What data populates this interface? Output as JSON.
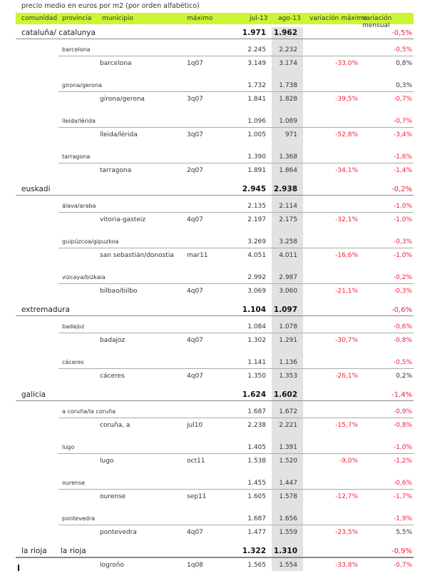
{
  "title": "precio medio en euros por m2 (por orden alfabético)",
  "headers": {
    "comunidad": "comunidad",
    "provincia": "provincia",
    "municipio": "municipio",
    "maximo": "máximo",
    "jul": "jul-13",
    "ago": "ago-13",
    "var_max": "variación máximo",
    "var_mensual": "variación mensual"
  },
  "rows": [
    {
      "type": "comm",
      "name": "cataluña/ catalunya",
      "jul": "1.971",
      "ago": "1.962",
      "var_max": "",
      "var_mensual": "-0,5%"
    },
    {
      "type": "prov",
      "name": "barcelona",
      "jul": "2.245",
      "ago": "2.232",
      "var_max": "",
      "var_mensual": "-0,5%"
    },
    {
      "type": "muni",
      "name": "barcelona",
      "maximo": "1q07",
      "jul": "3.149",
      "ago": "3.174",
      "var_max": "-33,0%",
      "var_mensual": "0,8%"
    },
    {
      "type": "prov",
      "name": "girona/gerona",
      "jul": "1.732",
      "ago": "1.738",
      "var_max": "",
      "var_mensual": "0,3%"
    },
    {
      "type": "muni",
      "name": "girona/gerona",
      "maximo": "3q07",
      "jul": "1.841",
      "ago": "1.828",
      "var_max": "-39,5%",
      "var_mensual": "-0,7%"
    },
    {
      "type": "prov",
      "name": "lleida/lérida",
      "jul": "1.096",
      "ago": "1.089",
      "var_max": "",
      "var_mensual": "-0,7%"
    },
    {
      "type": "muni",
      "name": "lleida/lérida",
      "maximo": "3q07",
      "jul": "1.005",
      "ago": "971",
      "var_max": "-52,8%",
      "var_mensual": "-3,4%"
    },
    {
      "type": "prov",
      "name": "tarragona",
      "jul": "1.390",
      "ago": "1.368",
      "var_max": "",
      "var_mensual": "-1,6%"
    },
    {
      "type": "muni",
      "name": "tarragona",
      "maximo": "2q07",
      "jul": "1.891",
      "ago": "1.864",
      "var_max": "-34,1%",
      "var_mensual": "-1,4%"
    },
    {
      "type": "comm",
      "name": "euskadi",
      "jul": "2.945",
      "ago": "2.938",
      "var_max": "",
      "var_mensual": "-0,2%"
    },
    {
      "type": "prov",
      "name": "álava/araba",
      "jul": "2.135",
      "ago": "2.114",
      "var_max": "",
      "var_mensual": "-1,0%"
    },
    {
      "type": "muni",
      "name": "vitoria-gasteiz",
      "maximo": "4q07",
      "jul": "2.197",
      "ago": "2.175",
      "var_max": "-32,1%",
      "var_mensual": "-1,0%"
    },
    {
      "type": "prov",
      "name": "guipúzcoa/gipuzkoa",
      "jul": "3.269",
      "ago": "3.258",
      "var_max": "",
      "var_mensual": "-0,3%"
    },
    {
      "type": "muni",
      "name": "san sebastián/donostia",
      "maximo": "mar11",
      "jul": "4.051",
      "ago": "4.011",
      "var_max": "-16,6%",
      "var_mensual": "-1,0%"
    },
    {
      "type": "prov",
      "name": "vizcaya/bizkaia",
      "jul": "2.992",
      "ago": "2.987",
      "var_max": "",
      "var_mensual": "-0,2%"
    },
    {
      "type": "muni",
      "name": "bilbao/bilbo",
      "maximo": "4q07",
      "jul": "3.069",
      "ago": "3.060",
      "var_max": "-21,1%",
      "var_mensual": "-0,3%"
    },
    {
      "type": "comm",
      "name": "extremadura",
      "jul": "1.104",
      "ago": "1.097",
      "var_max": "",
      "var_mensual": "-0,6%"
    },
    {
      "type": "prov",
      "name": "badajoz",
      "jul": "1.084",
      "ago": "1.078",
      "var_max": "",
      "var_mensual": "-0,6%"
    },
    {
      "type": "muni",
      "name": "badajoz",
      "maximo": "4q07",
      "jul": "1.302",
      "ago": "1.291",
      "var_max": "-30,7%",
      "var_mensual": "-0,8%"
    },
    {
      "type": "prov",
      "name": "cáceres",
      "jul": "1.141",
      "ago": "1.136",
      "var_max": "",
      "var_mensual": "-0,5%"
    },
    {
      "type": "muni",
      "name": "cáceres",
      "maximo": "4q07",
      "jul": "1.350",
      "ago": "1.353",
      "var_max": "-26,1%",
      "var_mensual": "0,2%"
    },
    {
      "type": "comm",
      "name": "galicia",
      "jul": "1.624",
      "ago": "1.602",
      "var_max": "",
      "var_mensual": "-1,4%"
    },
    {
      "type": "prov",
      "name": "a coruña/la coruña",
      "jul": "1.687",
      "ago": "1.672",
      "var_max": "",
      "var_mensual": "-0,9%"
    },
    {
      "type": "muni",
      "name": "coruña, a",
      "maximo": "jul10",
      "jul": "2.238",
      "ago": "2.221",
      "var_max": "-15,7%",
      "var_mensual": "-0,8%"
    },
    {
      "type": "prov",
      "name": "lugo",
      "jul": "1.405",
      "ago": "1.391",
      "var_max": "",
      "var_mensual": "-1,0%"
    },
    {
      "type": "muni",
      "name": "lugo",
      "maximo": "oct11",
      "jul": "1.538",
      "ago": "1.520",
      "var_max": "-9,0%",
      "var_mensual": "-1,2%"
    },
    {
      "type": "prov",
      "name": "ourense",
      "jul": "1.455",
      "ago": "1.447",
      "var_max": "",
      "var_mensual": "-0,6%"
    },
    {
      "type": "muni",
      "name": "ourense",
      "maximo": "sep11",
      "jul": "1.605",
      "ago": "1.578",
      "var_max": "-12,7%",
      "var_mensual": "-1,7%"
    },
    {
      "type": "prov",
      "name": "pontevedra",
      "jul": "1.687",
      "ago": "1.656",
      "var_max": "",
      "var_mensual": "-1,9%"
    },
    {
      "type": "muni",
      "name": "pontevedra",
      "maximo": "4q07",
      "jul": "1.477",
      "ago": "1.559",
      "var_max": "-23,5%",
      "var_mensual": "5,5%"
    },
    {
      "type": "comm",
      "name": "la rioja",
      "prov": "la rioja",
      "jul": "1.322",
      "ago": "1.310",
      "var_max": "",
      "var_mensual": "-0,9%"
    },
    {
      "type": "muni",
      "name": "logroño",
      "maximo": "1q08",
      "jul": "1.565",
      "ago": "1.554",
      "var_max": "-33,8%",
      "var_mensual": "-0,7%"
    }
  ]
}
